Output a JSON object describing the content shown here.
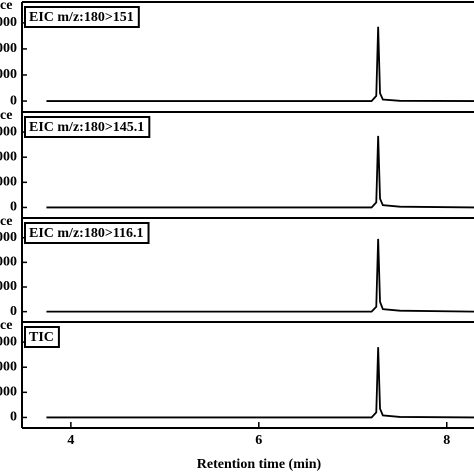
{
  "chart_data": [
    {
      "type": "line",
      "annotation": "EIC m/z:180>151",
      "ylabel": "ce",
      "x": [
        3.74,
        7.2,
        7.25,
        7.27,
        7.29,
        7.32,
        7.5,
        8.29
      ],
      "values": [
        0,
        0,
        200,
        2850,
        300,
        60,
        10,
        0
      ],
      "color": "#000000",
      "xlim": [
        3.48,
        8.29
      ],
      "ylim": [
        -420,
        3800
      ],
      "yticks": [
        {
          "value": 0,
          "label": "0"
        },
        {
          "value": 1000,
          "label": "000"
        },
        {
          "value": 2000,
          "label": "000"
        },
        {
          "value": 3000,
          "label": "000"
        }
      ]
    },
    {
      "type": "line",
      "annotation": "EIC m/z:180>145.1",
      "ylabel": "ce",
      "x": [
        3.74,
        7.2,
        7.25,
        7.27,
        7.29,
        7.32,
        7.5,
        8.29
      ],
      "values": [
        0,
        0,
        200,
        2850,
        350,
        90,
        30,
        0
      ],
      "color": "#000000",
      "xlim": [
        3.48,
        8.29
      ],
      "ylim": [
        -420,
        3800
      ],
      "yticks": [
        {
          "value": 0,
          "label": "0"
        },
        {
          "value": 1000,
          "label": "000"
        },
        {
          "value": 2000,
          "label": "000"
        },
        {
          "value": 3000,
          "label": "000"
        }
      ]
    },
    {
      "type": "line",
      "annotation": "EIC m/z:180>116.1",
      "ylabel": "ce",
      "x": [
        3.74,
        7.2,
        7.25,
        7.27,
        7.29,
        7.32,
        7.5,
        8.29
      ],
      "values": [
        0,
        0,
        200,
        2950,
        400,
        100,
        40,
        0
      ],
      "color": "#000000",
      "xlim": [
        3.48,
        8.29
      ],
      "ylim": [
        -420,
        3800
      ],
      "yticks": [
        {
          "value": 0,
          "label": "0"
        },
        {
          "value": 1000,
          "label": "000"
        },
        {
          "value": 2000,
          "label": "000"
        },
        {
          "value": 3000,
          "label": "000"
        }
      ]
    },
    {
      "type": "line",
      "annotation": "TIC",
      "ylabel": "ce",
      "x": [
        3.74,
        7.2,
        7.25,
        7.27,
        7.29,
        7.32,
        7.5,
        8.29
      ],
      "values": [
        0,
        0,
        200,
        2800,
        350,
        80,
        20,
        0
      ],
      "color": "#000000",
      "xlim": [
        3.48,
        8.29
      ],
      "ylim": [
        -420,
        3800
      ],
      "yticks": [
        {
          "value": 0,
          "label": "0"
        },
        {
          "value": 1000,
          "label": "000"
        },
        {
          "value": 2000,
          "label": "000"
        },
        {
          "value": 3000,
          "label": "000"
        }
      ],
      "xticks": [
        4,
        6,
        8
      ],
      "xlabel": "Retention time (min)"
    }
  ]
}
